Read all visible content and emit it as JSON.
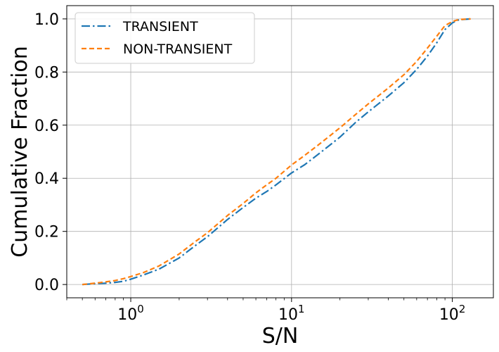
{
  "chart_data": {
    "type": "line",
    "xscale": "log",
    "xlim": [
      0.4,
      180
    ],
    "ylim": [
      -0.05,
      1.05
    ],
    "xlabel": "S/N",
    "ylabel": "Cumulative Fraction",
    "x_ticks": [
      {
        "value": 1,
        "base": "10",
        "exp": "0"
      },
      {
        "value": 10,
        "base": "10",
        "exp": "1"
      },
      {
        "value": 100,
        "base": "10",
        "exp": "2"
      }
    ],
    "y_ticks": [
      {
        "value": 0.0,
        "label": "0.0"
      },
      {
        "value": 0.2,
        "label": "0.2"
      },
      {
        "value": 0.4,
        "label": "0.4"
      },
      {
        "value": 0.6,
        "label": "0.6"
      },
      {
        "value": 0.8,
        "label": "0.8"
      },
      {
        "value": 1.0,
        "label": "1.0"
      }
    ],
    "grid": true,
    "legend_position": "top-left",
    "series": [
      {
        "name": "TRANSIENT",
        "color": "#1f77b4",
        "dash": "dash-dot",
        "x": [
          0.5,
          0.6,
          0.7,
          0.8,
          0.9,
          1.0,
          1.2,
          1.5,
          2.0,
          2.5,
          3.0,
          4.0,
          5.0,
          6.0,
          7.0,
          8.0,
          10.0,
          12.0,
          15.0,
          20.0,
          25.0,
          30.0,
          40.0,
          50.0,
          60.0,
          70.0,
          80.0,
          90.0,
          100.0,
          110.0,
          130.0
        ],
        "y": [
          0.0,
          0.003,
          0.005,
          0.008,
          0.012,
          0.02,
          0.036,
          0.058,
          0.1,
          0.145,
          0.18,
          0.245,
          0.29,
          0.325,
          0.35,
          0.375,
          0.42,
          0.45,
          0.495,
          0.555,
          0.61,
          0.65,
          0.71,
          0.76,
          0.81,
          0.86,
          0.91,
          0.96,
          0.985,
          0.997,
          1.0
        ]
      },
      {
        "name": "NON-TRANSIENT",
        "color": "#ff7f0e",
        "dash": "dashed",
        "x": [
          0.5,
          0.6,
          0.7,
          0.8,
          0.9,
          1.0,
          1.2,
          1.5,
          2.0,
          2.5,
          3.0,
          4.0,
          5.0,
          6.0,
          7.0,
          8.0,
          10.0,
          12.0,
          15.0,
          20.0,
          25.0,
          30.0,
          40.0,
          50.0,
          60.0,
          70.0,
          80.0,
          90.0,
          100.0,
          110.0,
          130.0
        ],
        "y": [
          0.0,
          0.005,
          0.01,
          0.015,
          0.022,
          0.03,
          0.045,
          0.07,
          0.115,
          0.16,
          0.195,
          0.26,
          0.305,
          0.345,
          0.375,
          0.4,
          0.45,
          0.485,
          0.53,
          0.59,
          0.64,
          0.68,
          0.74,
          0.79,
          0.84,
          0.89,
          0.935,
          0.975,
          0.99,
          0.998,
          1.0
        ]
      }
    ]
  }
}
